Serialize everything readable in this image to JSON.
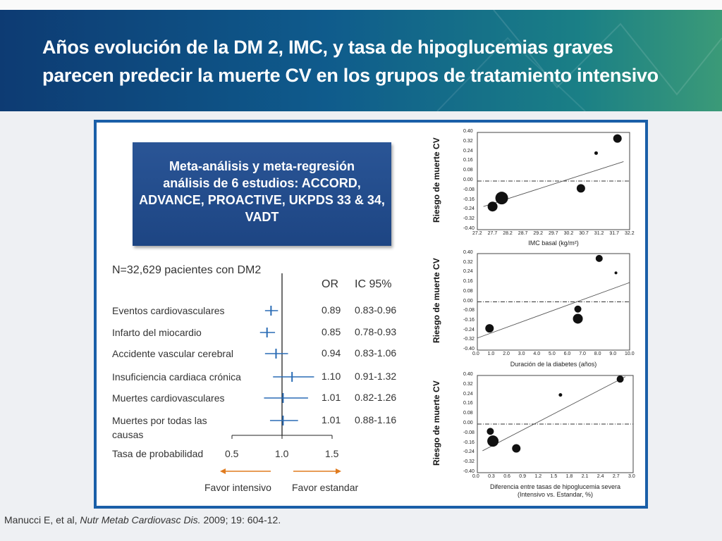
{
  "title": {
    "line1": "Años evolución de la DM 2, IMC, y tasa de hipoglucemias graves",
    "line2": "parecen predecir la muerte CV en los grupos de tratamiento intensivo"
  },
  "meta_box": {
    "line1": "Meta-análisis y meta-regresión",
    "line2": "análisis de 6 estudios: ACCORD,",
    "line3": "ADVANCE, PROACTIVE, UKPDS 33 & 34,",
    "line4": "VADT"
  },
  "citation": {
    "authors": "Manucci E, et al, ",
    "journal": "Nutr Metab Cardiovasc Dis.",
    "ref": " 2009; 19: 604-12."
  },
  "chart_data": [
    {
      "type": "forest",
      "title": "N=32,629 pacientes con DM2",
      "col_or": "OR",
      "col_ci": "IC 95%",
      "xlabel": "Tasa de probabilidad",
      "xticks": [
        "0.5",
        "1.0",
        "1.5"
      ],
      "xlim": [
        0.3,
        1.65
      ],
      "ref_line": 1.0,
      "favor_left": "Favor intensivo",
      "favor_right": "Favor estandar",
      "rows": [
        {
          "label": "Eventos cardiovasculares",
          "or": 0.89,
          "lo": 0.83,
          "hi": 0.96,
          "or_text": "0.89",
          "ci_text": "0.83-0.96"
        },
        {
          "label": "Infarto del miocardio",
          "or": 0.85,
          "lo": 0.78,
          "hi": 0.93,
          "or_text": "0.85",
          "ci_text": "0.78-0.93"
        },
        {
          "label": "Accidente vascular cerebral",
          "or": 0.94,
          "lo": 0.83,
          "hi": 1.06,
          "or_text": "0.94",
          "ci_text": "0.83-1.06"
        },
        {
          "label": "Insuficiencia cardiaca crónica",
          "or": 1.1,
          "lo": 0.91,
          "hi": 1.32,
          "or_text": "1.10",
          "ci_text": "0.91-1.32"
        },
        {
          "label": "Muertes cardiovasculares",
          "or": 1.01,
          "lo": 0.82,
          "hi": 1.26,
          "or_text": "1.01",
          "ci_text": "0.82-1.26"
        },
        {
          "label": "Muertes por todas las",
          "label2": "causas",
          "or": 1.01,
          "lo": 0.88,
          "hi": 1.16,
          "or_text": "1.01",
          "ci_text": "0.88-1.16"
        }
      ]
    },
    {
      "type": "scatter",
      "ylabel": "Riesgo de muerte CV",
      "xlabel": "IMC basal  (kg/m²)",
      "xlim": [
        27.2,
        32.2
      ],
      "ylim": [
        -0.4,
        0.4
      ],
      "xticks": [
        "27.2",
        "27.7",
        "28.2",
        "28.7",
        "29.2",
        "29.7",
        "30.2",
        "30.7",
        "31.2",
        "31.7",
        "32.2"
      ],
      "yticks": [
        "0.40",
        "0.32",
        "0.24",
        "0.16",
        "0.08",
        "0.00",
        "-0.08",
        "-0.16",
        "-0.24",
        "-0.32",
        "-0.40"
      ],
      "points": [
        {
          "x": 27.7,
          "y": -0.21,
          "size": 7
        },
        {
          "x": 28.0,
          "y": -0.14,
          "size": 9
        },
        {
          "x": 30.6,
          "y": -0.06,
          "size": 6
        },
        {
          "x": 31.1,
          "y": 0.23,
          "size": 2.5
        },
        {
          "x": 31.8,
          "y": 0.35,
          "size": 6
        }
      ],
      "trend": {
        "x0": 27.4,
        "y0": -0.21,
        "x1": 32.0,
        "y1": 0.16
      }
    },
    {
      "type": "scatter",
      "ylabel": "Riesgo de muerte CV",
      "xlabel": "Duración de la diabetes (años)",
      "xlim": [
        0.0,
        10.0
      ],
      "ylim": [
        -0.4,
        0.4
      ],
      "xticks": [
        "0.0",
        "1.0",
        "2.0",
        "3.0",
        "4.0",
        "5.0",
        "6.0",
        "7.0",
        "8.0",
        "9.0",
        "10.0"
      ],
      "yticks": [
        "0.40",
        "0.32",
        "0.24",
        "0.16",
        "0.08",
        "0.00",
        "-0.08",
        "-0.16",
        "-0.24",
        "-0.32",
        "-0.40"
      ],
      "points": [
        {
          "x": 0.8,
          "y": -0.22,
          "size": 6
        },
        {
          "x": 6.6,
          "y": -0.06,
          "size": 5
        },
        {
          "x": 6.6,
          "y": -0.14,
          "size": 7
        },
        {
          "x": 8.0,
          "y": 0.36,
          "size": 5
        },
        {
          "x": 9.1,
          "y": 0.24,
          "size": 2
        }
      ],
      "trend": {
        "x0": 0.0,
        "y0": -0.3,
        "x1": 10.0,
        "y1": 0.16
      }
    },
    {
      "type": "scatter",
      "ylabel": "Riesgo de muerte CV",
      "xlabel": "Diferencia entre tasas de hipoglucemia severa",
      "xlabel2": "(Intensivo vs. Estandar, %)",
      "xlim": [
        0.0,
        3.0
      ],
      "ylim": [
        -0.4,
        0.4
      ],
      "xticks": [
        "0.0",
        "0.3",
        "0.6",
        "0.9",
        "1.2",
        "1.5",
        "1.8",
        "2.1",
        "2.4",
        "2.7",
        "3.0"
      ],
      "yticks": [
        "0.40",
        "0.32",
        "0.24",
        "0.16",
        "0.08",
        "0.00",
        "-0.08",
        "-0.16",
        "-0.24",
        "-0.32",
        "-0.40"
      ],
      "points": [
        {
          "x": 0.25,
          "y": -0.06,
          "size": 5
        },
        {
          "x": 0.3,
          "y": -0.14,
          "size": 8
        },
        {
          "x": 0.75,
          "y": -0.2,
          "size": 6
        },
        {
          "x": 1.6,
          "y": 0.24,
          "size": 2.5
        },
        {
          "x": 2.75,
          "y": 0.37,
          "size": 5
        }
      ],
      "trend": {
        "x0": 0.1,
        "y0": -0.22,
        "x1": 2.85,
        "y1": 0.39
      }
    }
  ]
}
